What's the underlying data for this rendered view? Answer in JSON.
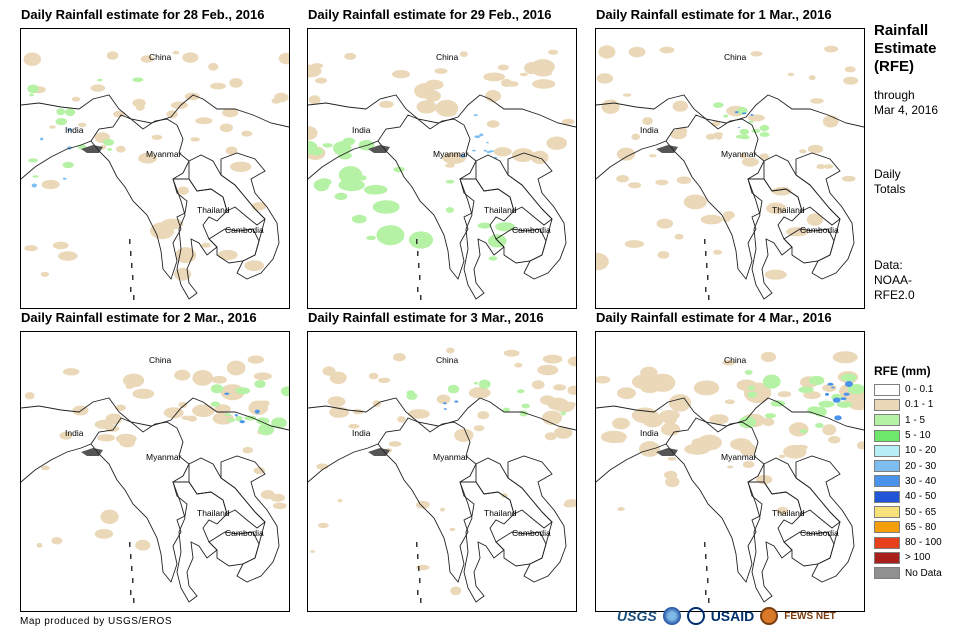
{
  "panels": [
    {
      "title": "Daily Rainfall estimate for 28 Feb., 2016",
      "labels": {
        "china": "China",
        "india": "India",
        "myanmar": "Myanmar",
        "thailand": "Thailand",
        "cambodia": "Cambodia"
      }
    },
    {
      "title": "Daily Rainfall estimate for 29 Feb., 2016",
      "labels": {
        "china": "China",
        "india": "India",
        "myanmar": "Myanmar",
        "thailand": "Thailand",
        "cambodia": "Cambodia"
      }
    },
    {
      "title": "Daily Rainfall estimate for 1 Mar., 2016",
      "labels": {
        "china": "China",
        "india": "India",
        "myanmar": "Myanmar",
        "thailand": "Thailand",
        "cambodia": "Cambodia"
      }
    },
    {
      "title": "Daily Rainfall estimate for 2 Mar., 2016",
      "labels": {
        "china": "China",
        "india": "India",
        "myanmar": "Myanmar",
        "thailand": "Thailand",
        "cambodia": "Cambodia"
      }
    },
    {
      "title": "Daily Rainfall estimate for 3 Mar., 2016",
      "labels": {
        "china": "China",
        "india": "India",
        "myanmar": "Myanmar",
        "thailand": "Thailand",
        "cambodia": "Cambodia"
      }
    },
    {
      "title": "Daily Rainfall estimate for 4 Mar., 2016",
      "labels": {
        "china": "China",
        "india": "India",
        "myanmar": "Myanmar",
        "thailand": "Thailand",
        "cambodia": "Cambodia"
      }
    }
  ],
  "sidebar": {
    "title_line1": "Rainfall",
    "title_line2": "Estimate",
    "title_line3": "(RFE)",
    "through_line1": "through",
    "through_line2": "Mar 4, 2016",
    "totals_line1": "Daily",
    "totals_line2": "Totals",
    "data_line1": "Data:",
    "data_line2": "NOAA-",
    "data_line3": "RFE2.0"
  },
  "legend": {
    "title": "RFE (mm)",
    "items": [
      {
        "label": "0 - 0.1",
        "color": "#ffffff"
      },
      {
        "label": "0.1 - 1",
        "color": "#ead8b8"
      },
      {
        "label": "1 - 5",
        "color": "#b6f2a6"
      },
      {
        "label": "5 - 10",
        "color": "#6ee86a"
      },
      {
        "label": "10 - 20",
        "color": "#b6eef5"
      },
      {
        "label": "20 - 30",
        "color": "#7dbdf0"
      },
      {
        "label": "30 - 40",
        "color": "#4a93ec"
      },
      {
        "label": "40 - 50",
        "color": "#2055d8"
      },
      {
        "label": "50 - 65",
        "color": "#f8e07a"
      },
      {
        "label": "65 - 80",
        "color": "#f59e0b"
      },
      {
        "label": "80 - 100",
        "color": "#e8401c"
      },
      {
        "label": "> 100",
        "color": "#a8201c"
      },
      {
        "label": "No Data",
        "color": "#909090"
      }
    ]
  },
  "footer": {
    "credit": "Map produced by USGS/EROS",
    "logo_usgs": "USGS",
    "logo_usaid": "USAID",
    "logo_fews": "FEWS NET"
  }
}
